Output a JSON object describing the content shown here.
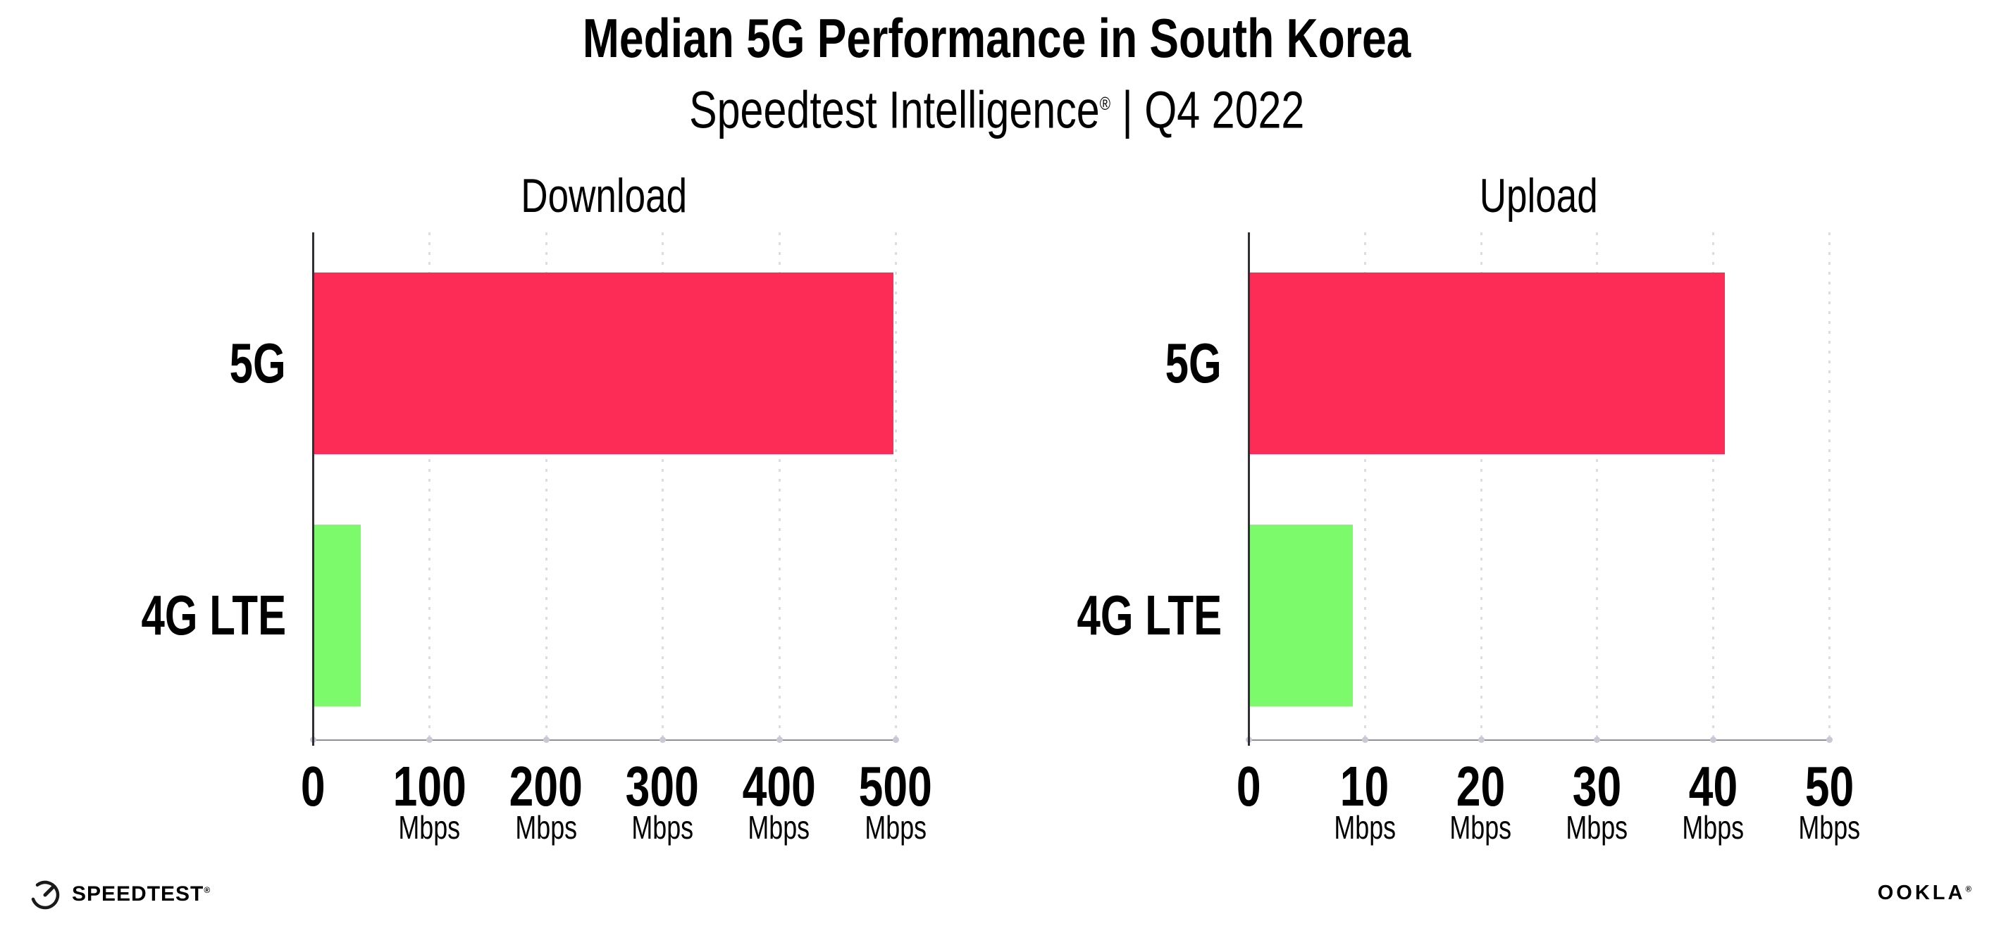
{
  "header": {
    "title": "Median 5G Performance in South Korea",
    "subtitle_brand": "Speedtest Intelligence",
    "subtitle_mark": "®",
    "subtitle_rest": " | Q4 2022"
  },
  "colors": {
    "bar_5g": "#fc2c56",
    "bar_4g": "#7dfa6c",
    "gridline": "#dcdce6",
    "x_axis": "#8f8f98",
    "y_axis": "#2f2f36",
    "text": "#000000"
  },
  "chart_data": [
    {
      "type": "bar",
      "title": "Download",
      "orientation": "horizontal",
      "categories": [
        "5G",
        "4G LTE"
      ],
      "values": [
        498,
        41
      ],
      "unit": "Mbps",
      "xlim": [
        0,
        500
      ],
      "ticks": [
        0,
        100,
        200,
        300,
        400,
        500
      ],
      "bar_colors": [
        "#fc2c56",
        "#7dfa6c"
      ],
      "grid": "dotted-vertical",
      "legend": "none"
    },
    {
      "type": "bar",
      "title": "Upload",
      "orientation": "horizontal",
      "categories": [
        "5G",
        "4G LTE"
      ],
      "values": [
        41,
        9
      ],
      "unit": "Mbps",
      "xlim": [
        0,
        50
      ],
      "ticks": [
        0,
        10,
        20,
        30,
        40,
        50
      ],
      "bar_colors": [
        "#fc2c56",
        "#7dfa6c"
      ],
      "grid": "dotted-vertical",
      "legend": "none"
    }
  ],
  "footer": {
    "speedtest_wordmark": "SPEEDTEST",
    "speedtest_mark": "®",
    "ookla_wordmark": "OOKLA",
    "ookla_mark": "®",
    "gauge_icon": "speedtest-gauge-icon"
  }
}
